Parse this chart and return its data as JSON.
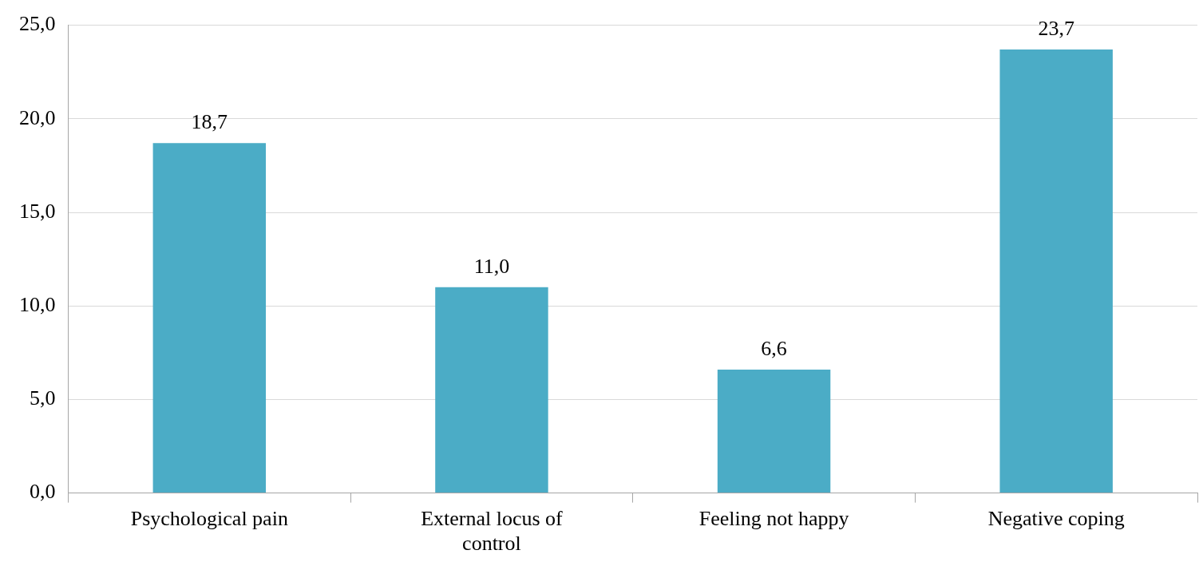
{
  "chart_data": {
    "type": "bar",
    "categories": [
      "Psychological pain",
      "External locus of control",
      "Feeling not happy",
      "Negative coping"
    ],
    "values": [
      18.7,
      11.0,
      6.6,
      23.7
    ],
    "color": "#4bacc6",
    "value_labels": [
      "18,7",
      "11,0",
      "6,6",
      "23,7"
    ],
    "ylim": [
      0,
      25
    ],
    "yticks": [
      {
        "value": 0,
        "label": "0,0"
      },
      {
        "value": 5,
        "label": "5,0"
      },
      {
        "value": 10,
        "label": "10,0"
      },
      {
        "value": 15,
        "label": "15,0"
      },
      {
        "value": 20,
        "label": "20,0"
      },
      {
        "value": 25,
        "label": "25,0"
      }
    ],
    "grid": "y",
    "legend": false
  }
}
